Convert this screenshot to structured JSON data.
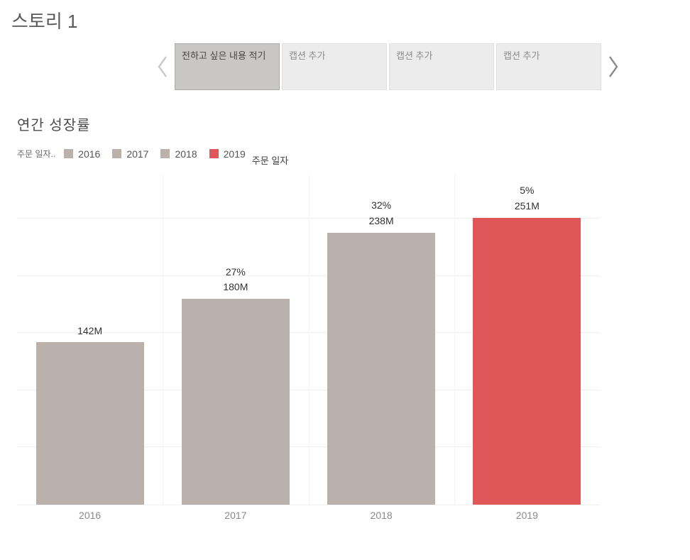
{
  "story": {
    "title": "스토리 1"
  },
  "navigator": {
    "prev_icon": "chevron-left",
    "next_icon": "chevron-right",
    "captions": [
      {
        "label": "전하고 싶은 내용 적기",
        "active": true
      },
      {
        "label": "캡션 추가",
        "active": false
      },
      {
        "label": "캡션 추가",
        "active": false
      },
      {
        "label": "캡션 추가",
        "active": false
      }
    ]
  },
  "sheet": {
    "title": "연간 성장률",
    "legend": {
      "prefix": "주문 일자..",
      "suffix": "주문 일자",
      "items": [
        {
          "label": "2016",
          "color": "#bab0ac"
        },
        {
          "label": "2017",
          "color": "#bab0ac"
        },
        {
          "label": "2018",
          "color": "#bab0ac"
        },
        {
          "label": "2019",
          "color": "#e15759"
        }
      ]
    }
  },
  "colors": {
    "bar_gray": "#bab0ac",
    "bar_red": "#e15759",
    "active_caption_bg": "#c9c7c6",
    "inactive_caption_bg": "#ececec"
  },
  "chart_data": {
    "type": "bar",
    "title": "연간 성장률",
    "categories": [
      "2016",
      "2017",
      "2018",
      "2019"
    ],
    "values": [
      142,
      180,
      238,
      251
    ],
    "unit": "M",
    "value_labels": [
      "142M",
      "180M",
      "238M",
      "251M"
    ],
    "growth_labels": [
      "",
      "27%",
      "32%",
      "5%"
    ],
    "colors": [
      "#bab0ac",
      "#bab0ac",
      "#bab0ac",
      "#e15759"
    ],
    "xlabel": "",
    "ylabel": "",
    "ylim": [
      0,
      290
    ],
    "gridline_values": [
      50,
      100,
      150,
      200,
      250
    ],
    "grid": true,
    "legend_position": "top"
  }
}
